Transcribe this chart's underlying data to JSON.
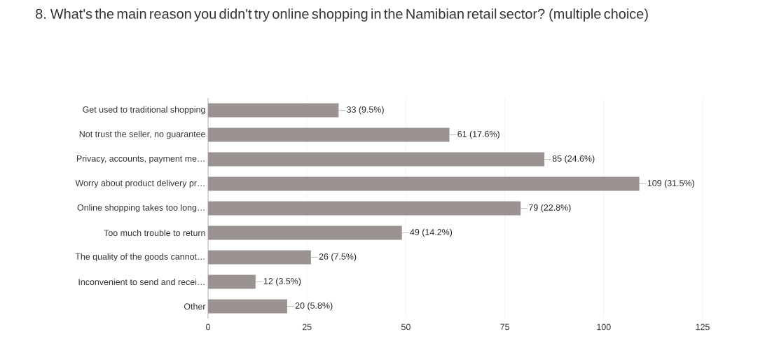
{
  "chart_data": {
    "type": "bar",
    "orientation": "horizontal",
    "title": "8. What's the main reason you didn't try online shopping in the Namibian retail sector? (multiple choice)",
    "categories": [
      "Get used to traditional shopping",
      "Not trust the seller, no guarantee",
      "Privacy, accounts, payment me…",
      "Worry about product delivery pr…",
      "Online shopping takes too long…",
      "Too much trouble to return",
      "The quality of the goods cannot…",
      "Inconvenient to send and recei…",
      "Other"
    ],
    "values": [
      33,
      61,
      85,
      109,
      79,
      49,
      26,
      12,
      20
    ],
    "value_labels": [
      "33 (9.5%)",
      "61 (17.6%)",
      "85 (24.6%)",
      "109 (31.5%)",
      "79 (22.8%)",
      "49 (14.2%)",
      "26 (7.5%)",
      "12 (3.5%)",
      "20 (5.8%)"
    ],
    "color": "#9b9391",
    "xlim": [
      0,
      125
    ],
    "xticks": [
      0,
      25,
      50,
      75,
      100,
      125
    ],
    "grid": "x"
  }
}
